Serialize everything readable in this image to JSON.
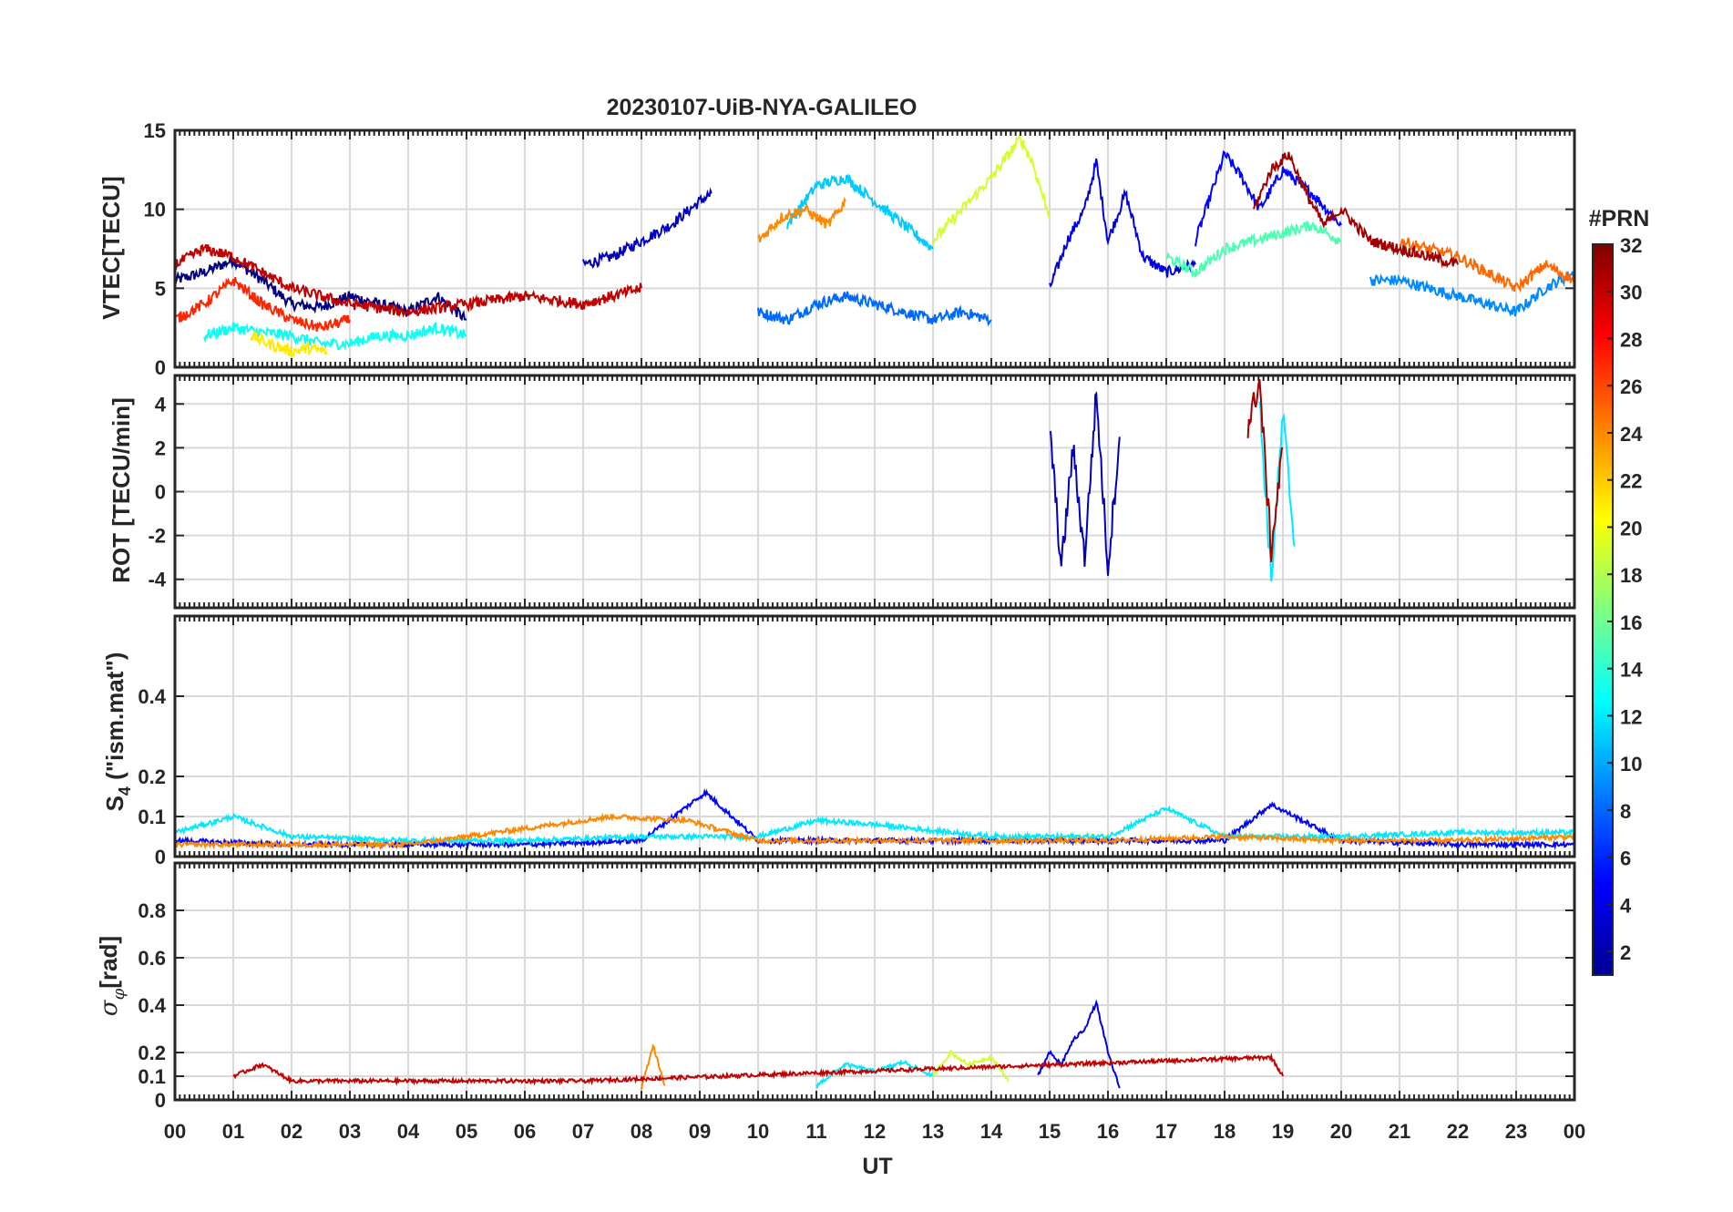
{
  "figure": {
    "title": "20230107-UiB-NYA-GALILEO",
    "xlabel": "UT",
    "xticks": [
      "00",
      "01",
      "02",
      "03",
      "04",
      "05",
      "06",
      "07",
      "08",
      "09",
      "10",
      "11",
      "12",
      "13",
      "14",
      "15",
      "16",
      "17",
      "18",
      "19",
      "20",
      "21",
      "22",
      "23",
      "00"
    ]
  },
  "colorbar": {
    "title": "#PRN",
    "ticks": [
      "2",
      "4",
      "6",
      "8",
      "10",
      "12",
      "14",
      "16",
      "18",
      "20",
      "22",
      "24",
      "26",
      "28",
      "30",
      "32"
    ],
    "range": [
      1,
      32
    ],
    "colormap": "jet"
  },
  "chart_data": [
    {
      "type": "line",
      "panel": "vtec",
      "title": "20230107-UiB-NYA-GALILEO",
      "ylabel": "VTEC[TECU]",
      "xlabel": "",
      "xlim": [
        0,
        24
      ],
      "ylim": [
        0,
        15
      ],
      "yticks": [
        0,
        5,
        10,
        15
      ],
      "grid": true,
      "note_series": "one trace per GALILEO PRN, colored by PRN",
      "series": [
        {
          "prn": 1,
          "x": [
            0.0,
            0.5,
            1.0,
            1.5,
            2.0,
            2.5,
            3.0,
            3.5,
            4.0,
            4.5,
            5.0
          ],
          "values": [
            5.5,
            6.0,
            6.8,
            5.5,
            4.0,
            3.8,
            4.5,
            4.0,
            3.5,
            4.5,
            3.0
          ]
        },
        {
          "prn": 3,
          "x": [
            7.0,
            7.5,
            8.0,
            8.5,
            9.0,
            9.2
          ],
          "values": [
            6.5,
            7.0,
            8.0,
            9.0,
            10.5,
            11.0
          ]
        },
        {
          "prn": 4,
          "x": [
            15.0,
            15.3,
            15.6,
            15.8,
            16.0,
            16.3,
            16.6,
            17.0,
            17.5
          ],
          "values": [
            5.0,
            8.0,
            10.0,
            13.0,
            8.0,
            11.0,
            7.0,
            6.0,
            6.5
          ]
        },
        {
          "prn": 5,
          "x": [
            17.5,
            18.0,
            18.3,
            18.6,
            19.0,
            19.5,
            20.0
          ],
          "values": [
            8.0,
            13.5,
            12.0,
            10.0,
            12.5,
            11.0,
            9.0
          ]
        },
        {
          "prn": 8,
          "x": [
            10.0,
            10.5,
            11.0,
            11.5,
            12.0,
            12.5,
            13.0,
            13.5,
            14.0
          ],
          "values": [
            3.5,
            3.0,
            4.0,
            4.5,
            4.0,
            3.5,
            3.0,
            3.5,
            3.0
          ]
        },
        {
          "prn": 9,
          "x": [
            20.5,
            21.0,
            21.5,
            22.0,
            22.5,
            23.0,
            23.5,
            24.0
          ],
          "values": [
            5.5,
            5.5,
            5.0,
            4.5,
            4.0,
            3.5,
            5.0,
            6.0
          ]
        },
        {
          "prn": 11,
          "x": [
            10.5,
            11.0,
            11.5,
            12.0,
            12.5,
            13.0
          ],
          "values": [
            9.0,
            11.5,
            12.0,
            10.5,
            9.0,
            7.5
          ]
        },
        {
          "prn": 13,
          "x": [
            0.5,
            1.0,
            1.5,
            2.0,
            2.5,
            3.0,
            3.5,
            4.0,
            4.5,
            5.0
          ],
          "values": [
            2.0,
            2.5,
            2.2,
            2.0,
            1.5,
            1.5,
            2.0,
            2.0,
            2.5,
            2.0
          ]
        },
        {
          "prn": 15,
          "x": [
            17.0,
            17.5,
            18.0,
            18.5,
            19.0,
            19.5,
            20.0
          ],
          "values": [
            7.0,
            6.0,
            7.5,
            8.0,
            8.5,
            9.0,
            8.0
          ]
        },
        {
          "prn": 19,
          "x": [
            13.0,
            13.5,
            14.0,
            14.5,
            14.7,
            15.0
          ],
          "values": [
            8.0,
            10.0,
            12.0,
            14.5,
            13.0,
            9.5
          ]
        },
        {
          "prn": 21,
          "x": [
            1.3,
            1.6,
            2.0,
            2.3,
            2.6
          ],
          "values": [
            2.0,
            1.5,
            1.0,
            1.2,
            1.0
          ]
        },
        {
          "prn": 24,
          "x": [
            10.0,
            10.4,
            10.8,
            11.2,
            11.5
          ],
          "values": [
            8.0,
            9.5,
            10.0,
            9.0,
            10.5
          ]
        },
        {
          "prn": 25,
          "x": [
            21.0,
            21.5,
            22.0,
            22.5,
            23.0,
            23.5,
            24.0
          ],
          "values": [
            8.0,
            7.5,
            7.0,
            6.0,
            5.0,
            6.5,
            5.5
          ]
        },
        {
          "prn": 27,
          "x": [
            0.0,
            0.5,
            1.0,
            1.5,
            2.0,
            2.5,
            3.0
          ],
          "values": [
            3.0,
            4.0,
            5.5,
            4.0,
            3.0,
            2.5,
            3.0
          ]
        },
        {
          "prn": 30,
          "x": [
            0.0,
            0.5,
            1.0,
            1.5,
            2.0,
            3.0,
            4.0,
            5.0,
            6.0,
            7.0,
            8.0
          ],
          "values": [
            6.5,
            7.5,
            7.0,
            6.0,
            5.0,
            4.0,
            3.5,
            4.0,
            4.5,
            4.0,
            5.0
          ]
        },
        {
          "prn": 31,
          "x": [
            18.5,
            18.8,
            19.1,
            19.4,
            19.7,
            20.0,
            20.5,
            21.0,
            21.5,
            22.0
          ],
          "values": [
            10.0,
            12.5,
            13.5,
            11.0,
            9.0,
            10.0,
            8.0,
            7.5,
            7.0,
            6.5
          ]
        }
      ]
    },
    {
      "type": "line",
      "panel": "rot",
      "ylabel": "ROT [TECU/min]",
      "xlim": [
        0,
        24
      ],
      "ylim": [
        -5.3,
        5.3
      ],
      "yticks": [
        -4,
        -2,
        0,
        2,
        4
      ],
      "grid": true,
      "series": [
        {
          "prn": 3,
          "x": [
            15.0,
            15.2,
            15.4,
            15.6,
            15.8,
            16.0,
            16.2
          ],
          "values": [
            3.0,
            -3.5,
            2.0,
            -3.0,
            4.5,
            -3.5,
            2.5
          ]
        },
        {
          "prn": 12,
          "x": [
            18.6,
            18.8,
            19.0,
            19.2
          ],
          "values": [
            4.0,
            -4.0,
            3.5,
            -2.5
          ]
        },
        {
          "prn": 31,
          "x": [
            18.4,
            18.6,
            18.8,
            19.0
          ],
          "values": [
            3.0,
            5.0,
            -2.7,
            2.0
          ]
        }
      ]
    },
    {
      "type": "line",
      "panel": "s4",
      "ylabel": "S_4 (\"ism.mat\")",
      "xlim": [
        0,
        24
      ],
      "ylim": [
        0,
        0.6
      ],
      "yticks": [
        0,
        0.1,
        0.2,
        0.4
      ],
      "grid": true,
      "series": [
        {
          "prn": 5,
          "x": [
            0,
            2,
            4,
            6,
            8,
            9.1,
            10,
            12,
            14,
            16,
            18,
            18.8,
            20,
            22,
            24
          ],
          "values": [
            0.04,
            0.03,
            0.03,
            0.03,
            0.04,
            0.16,
            0.04,
            0.04,
            0.04,
            0.04,
            0.04,
            0.13,
            0.04,
            0.03,
            0.03
          ]
        },
        {
          "prn": 12,
          "x": [
            0,
            1,
            2,
            4,
            6,
            8,
            10,
            11,
            12,
            14,
            16,
            17,
            18,
            20,
            22,
            24
          ],
          "values": [
            0.06,
            0.1,
            0.05,
            0.04,
            0.04,
            0.05,
            0.05,
            0.09,
            0.08,
            0.05,
            0.05,
            0.12,
            0.05,
            0.05,
            0.06,
            0.06
          ]
        },
        {
          "prn": 24,
          "x": [
            0,
            2,
            4,
            5.5,
            7.5,
            8.8,
            10,
            12,
            14,
            16,
            18,
            20,
            22,
            24
          ],
          "values": [
            0.03,
            0.03,
            0.03,
            0.06,
            0.1,
            0.09,
            0.04,
            0.04,
            0.04,
            0.04,
            0.05,
            0.04,
            0.04,
            0.05
          ]
        }
      ]
    },
    {
      "type": "line",
      "panel": "sigma_phi",
      "ylabel": "σ_φ[rad]",
      "xlim": [
        0,
        24
      ],
      "ylim": [
        0,
        1.0
      ],
      "yticks": [
        0,
        0.1,
        0.2,
        0.4,
        0.6,
        0.8
      ],
      "grid": true,
      "series": [
        {
          "prn": 4,
          "x": [
            14.8,
            15.0,
            15.2,
            15.4,
            15.6,
            15.8,
            16.0,
            16.2
          ],
          "values": [
            0.1,
            0.2,
            0.15,
            0.25,
            0.3,
            0.41,
            0.2,
            0.05
          ]
        },
        {
          "prn": 12,
          "x": [
            11.0,
            11.5,
            12.0,
            12.5,
            13.0
          ],
          "values": [
            0.06,
            0.15,
            0.12,
            0.16,
            0.1
          ]
        },
        {
          "prn": 19,
          "x": [
            13.0,
            13.3,
            13.6,
            14.0,
            14.3
          ],
          "values": [
            0.1,
            0.2,
            0.15,
            0.18,
            0.08
          ]
        },
        {
          "prn": 24,
          "x": [
            8.0,
            8.2,
            8.4
          ],
          "values": [
            0.05,
            0.23,
            0.06
          ]
        },
        {
          "prn": 30,
          "x": [
            1.0,
            1.5,
            2.0,
            7.0,
            18.8,
            19.0
          ],
          "values": [
            0.1,
            0.15,
            0.08,
            0.08,
            0.18,
            0.1
          ]
        }
      ]
    }
  ]
}
